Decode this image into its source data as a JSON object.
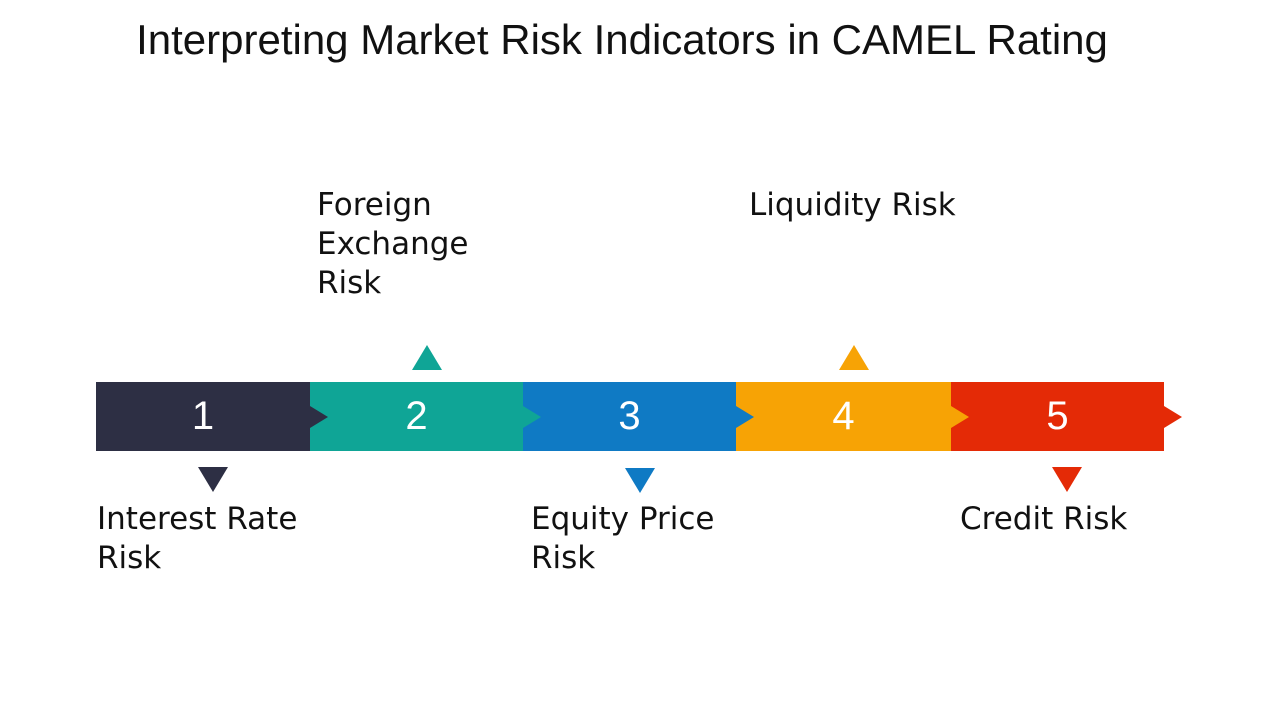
{
  "title": "Interpreting Market Risk Indicators in CAMEL Rating",
  "steps": [
    {
      "number": "1",
      "label": "Interest Rate\nRisk",
      "color": "#2d2f44",
      "marker": "down-triangle"
    },
    {
      "number": "2",
      "label": "Foreign\nExchange\nRisk",
      "color": "#0fa596",
      "marker": "up-triangle"
    },
    {
      "number": "3",
      "label": "Equity Price\nRisk",
      "color": "#0f7ac4",
      "marker": "down-triangle"
    },
    {
      "number": "4",
      "label": "Liquidity Risk",
      "color": "#f7a305",
      "marker": "up-triangle"
    },
    {
      "number": "5",
      "label": "Credit Risk",
      "color": "#e42a06",
      "marker": "down-triangle"
    }
  ]
}
